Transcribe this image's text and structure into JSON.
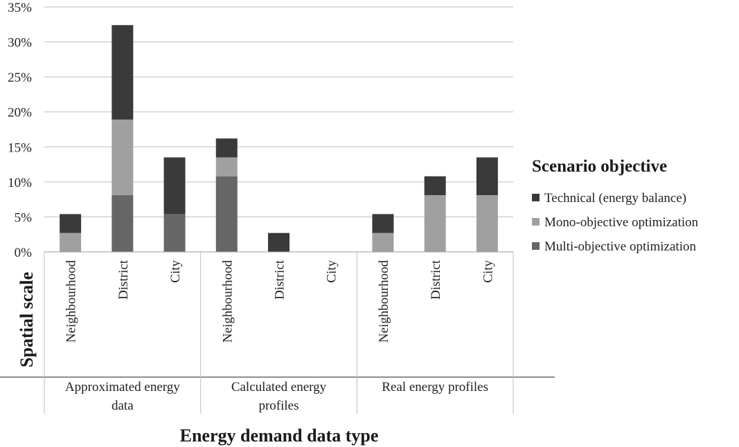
{
  "chart_data": {
    "type": "bar",
    "stacked": true,
    "title": "",
    "ylabel": "",
    "xlabel": "Energy demand data type",
    "xlabel_secondary": "Spatial scale",
    "ylim": [
      0,
      35
    ],
    "yticks": [
      "0%",
      "5%",
      "10%",
      "15%",
      "20%",
      "25%",
      "30%",
      "35%"
    ],
    "y_tick_values": [
      0,
      5,
      10,
      15,
      20,
      25,
      30,
      35
    ],
    "grid": true,
    "legend_position": "right",
    "legend_title": "Scenario objective",
    "groups": [
      {
        "label_lines": [
          "Approximated energy",
          "data"
        ],
        "categories": [
          "Neighbourhood",
          "District",
          "City"
        ]
      },
      {
        "label_lines": [
          "Calculated energy",
          "profiles"
        ],
        "categories": [
          "Neighbourhood",
          "District",
          "City"
        ]
      },
      {
        "label_lines": [
          "Real energy profiles"
        ],
        "categories": [
          "Neighbourhood",
          "District",
          "City"
        ]
      }
    ],
    "categories": [
      "Neighbourhood",
      "District",
      "City",
      "Neighbourhood",
      "District",
      "City",
      "Neighbourhood",
      "District",
      "City"
    ],
    "series": [
      {
        "name": "Multi-objective optimization",
        "color": "#666666",
        "values": [
          0,
          8.1,
          5.4,
          10.8,
          0,
          0,
          0,
          0,
          0
        ]
      },
      {
        "name": "Mono-objective optimization",
        "color": "#a0a0a0",
        "values": [
          2.7,
          10.8,
          0,
          2.7,
          0,
          0,
          2.7,
          8.1,
          8.1
        ]
      },
      {
        "name": "Technical (energy balance)",
        "color": "#3a3a3a",
        "values": [
          2.7,
          13.5,
          8.1,
          2.7,
          2.7,
          0,
          2.7,
          2.7,
          5.4
        ]
      }
    ],
    "legend_order": [
      "Technical (energy balance)",
      "Mono-objective optimization",
      "Multi-objective optimization"
    ]
  }
}
